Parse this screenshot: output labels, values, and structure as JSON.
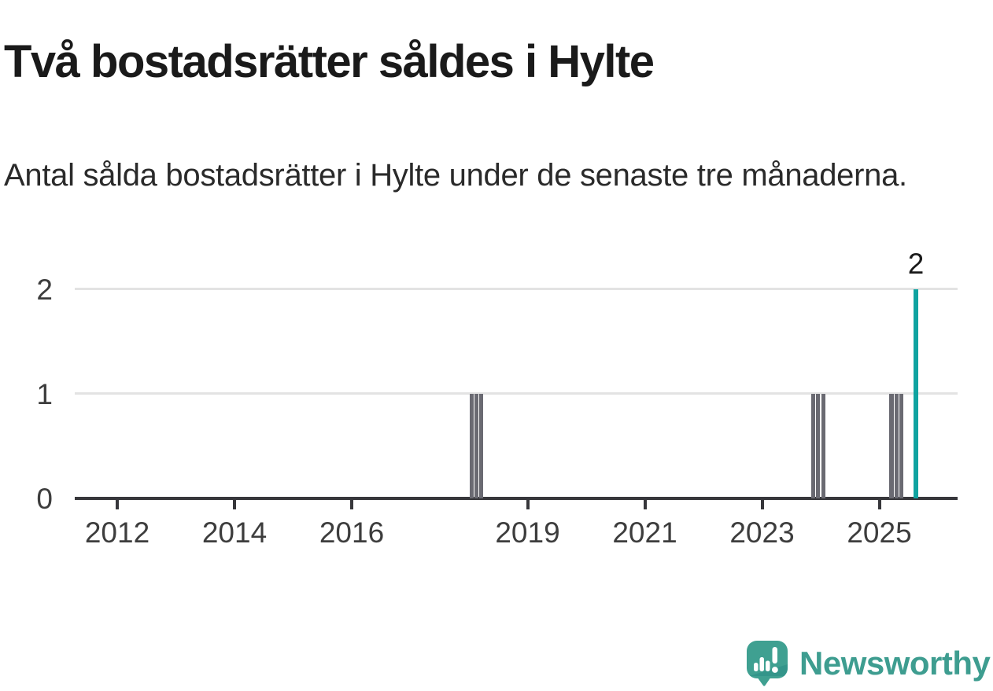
{
  "chart_data": {
    "type": "bar",
    "title": "Två bostadsrätter såldes i Hylte",
    "subtitle": "Antal sålda bostadsrätter i Hylte under de senaste tre månaderna.",
    "x_ticks": [
      2012,
      2014,
      2016,
      2019,
      2021,
      2023,
      2025
    ],
    "y_ticks": [
      0,
      1,
      2
    ],
    "ylim": [
      0,
      2
    ],
    "x_range_years": [
      2011.3,
      2026.3
    ],
    "grid": true,
    "legend": false,
    "bar_unit": "month",
    "bars": [
      {
        "month": "2018-01",
        "value": 1,
        "highlight": false
      },
      {
        "month": "2018-02",
        "value": 1,
        "highlight": false
      },
      {
        "month": "2018-03",
        "value": 1,
        "highlight": false
      },
      {
        "month": "2023-11",
        "value": 1,
        "highlight": false
      },
      {
        "month": "2023-12",
        "value": 1,
        "highlight": false
      },
      {
        "month": "2024-01",
        "value": 1,
        "highlight": false
      },
      {
        "month": "2025-03",
        "value": 1,
        "highlight": false
      },
      {
        "month": "2025-04",
        "value": 1,
        "highlight": false
      },
      {
        "month": "2025-05",
        "value": 1,
        "highlight": false
      },
      {
        "month": "2025-08",
        "value": 2,
        "highlight": true,
        "label": "2"
      }
    ],
    "colors": {
      "bar_default": "#6a6a72",
      "bar_highlight": "#0fa3a0",
      "grid": "#e3e3e3",
      "axis": "#37373b",
      "tick_text": "#3d3d3d",
      "title_text": "#1a1a1a"
    }
  },
  "branding": {
    "name": "Newsworthy",
    "color": "#3e9d90",
    "icon": "newsworthy-speech-bubble-chart-icon"
  }
}
